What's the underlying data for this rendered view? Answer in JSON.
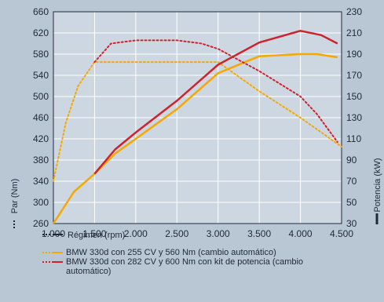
{
  "chart_data": {
    "type": "line",
    "xlabel": "Régimen (rpm)",
    "ylabel_left": "Par (Nm)",
    "ylabel_right": "Potencia (kW)",
    "xlim": [
      1000,
      4500
    ],
    "ylim_left": [
      260,
      660
    ],
    "ylim_right": [
      30,
      230
    ],
    "x_ticks": [
      "1.000",
      "1.500",
      "2.000",
      "2.500",
      "3.000",
      "3.500",
      "4.000",
      "4.500"
    ],
    "y_left_ticks": [
      "260",
      "300",
      "340",
      "380",
      "420",
      "460",
      "500",
      "540",
      "580",
      "620",
      "660"
    ],
    "y_right_ticks": [
      "30",
      "50",
      "70",
      "90",
      "110",
      "130",
      "150",
      "170",
      "190",
      "210",
      "230"
    ],
    "grid": true,
    "series": [
      {
        "name": "BMW 330d con 255 CV y 560 Nm (cambio automático)",
        "color": "#f5a800",
        "torque": [
          [
            1000,
            340
          ],
          [
            1150,
            450
          ],
          [
            1300,
            520
          ],
          [
            1500,
            565
          ],
          [
            2000,
            565
          ],
          [
            2500,
            565
          ],
          [
            3000,
            565
          ],
          [
            3500,
            510
          ],
          [
            4000,
            460
          ],
          [
            4500,
            405
          ]
        ],
        "power": [
          [
            1000,
            30
          ],
          [
            1250,
            60
          ],
          [
            1500,
            77
          ],
          [
            1750,
            96
          ],
          [
            2000,
            110
          ],
          [
            2500,
            138
          ],
          [
            3000,
            172
          ],
          [
            3500,
            188
          ],
          [
            4000,
            190
          ],
          [
            4200,
            190
          ],
          [
            4450,
            187
          ]
        ]
      },
      {
        "name": "BMW 330d con 282 CV y 600 Nm con kit de potencia (cambio automático)",
        "color": "#d0222c",
        "torque": [
          [
            1500,
            565
          ],
          [
            1700,
            600
          ],
          [
            2000,
            606
          ],
          [
            2500,
            606
          ],
          [
            2800,
            600
          ],
          [
            3000,
            590
          ],
          [
            3500,
            548
          ],
          [
            4000,
            500
          ],
          [
            4200,
            467
          ],
          [
            4450,
            414
          ]
        ],
        "power": [
          [
            1500,
            77
          ],
          [
            1750,
            100
          ],
          [
            2000,
            116
          ],
          [
            2500,
            146
          ],
          [
            3000,
            180
          ],
          [
            3500,
            201
          ],
          [
            4000,
            212
          ],
          [
            4250,
            208
          ],
          [
            4450,
            200
          ]
        ]
      }
    ]
  }
}
